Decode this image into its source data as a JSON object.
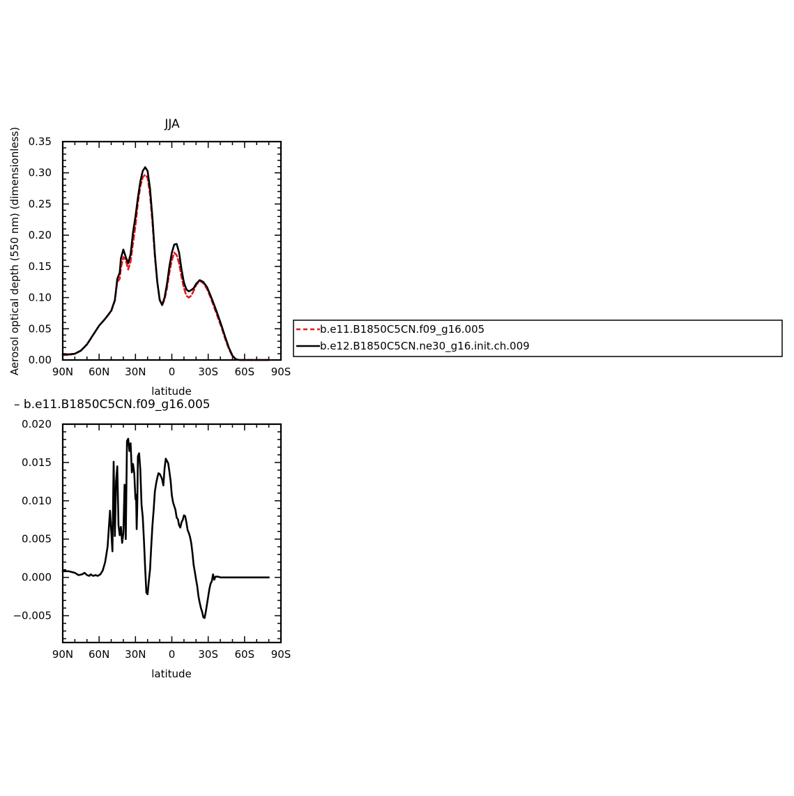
{
  "colors": {
    "series_a": "#e8141c",
    "series_b": "#000000",
    "frame": "#000000",
    "background": "#ffffff"
  },
  "legend": {
    "items": [
      {
        "label": "b.e11.B1850C5CN.f09_g16.005",
        "color": "#e8141c",
        "dash": "dashed"
      },
      {
        "label": "b.e12.B1850C5CN.ne30_g16.init.ch.009",
        "color": "#000000",
        "dash": "solid"
      }
    ]
  },
  "chart_data": [
    {
      "type": "line",
      "title": "JJA",
      "xlabel": "latitude",
      "ylabel": "Aerosol optical depth (550 nm) (dimensionless)",
      "xlim": [
        90,
        -90
      ],
      "ylim": [
        0,
        0.35
      ],
      "x_ticks": [
        90,
        60,
        30,
        0,
        -30,
        -60,
        -90
      ],
      "x_tick_labels": [
        "90N",
        "60N",
        "30N",
        "0",
        "30S",
        "60S",
        "90S"
      ],
      "y_ticks": [
        0,
        0.05,
        0.1,
        0.15,
        0.2,
        0.25,
        0.3,
        0.35
      ],
      "y_tick_labels": [
        "0.00",
        "0.05",
        "0.10",
        "0.15",
        "0.20",
        "0.25",
        "0.30",
        "0.35"
      ],
      "legend_position": "right",
      "series": [
        {
          "name": "b.e11.B1850C5CN.f09_g16.005",
          "color": "#e8141c",
          "dash": "dashed",
          "x": [
            90,
            85,
            80,
            75,
            70,
            65,
            60,
            55,
            50,
            47,
            45,
            43,
            42,
            40,
            38,
            36,
            34,
            32,
            30,
            28,
            26,
            24,
            22,
            20,
            18,
            16,
            14,
            12,
            10,
            8,
            6,
            4,
            2,
            0,
            -2,
            -4,
            -6,
            -8,
            -10,
            -12,
            -14,
            -16,
            -18,
            -20,
            -23,
            -26,
            -29,
            -32,
            -35,
            -38,
            -41,
            -44,
            -47,
            -50,
            -53,
            -56,
            -60,
            -63,
            -66,
            -70,
            -75,
            -80
          ],
          "y": [
            0.008,
            0.008,
            0.01,
            0.015,
            0.025,
            0.04,
            0.055,
            0.066,
            0.078,
            0.095,
            0.125,
            0.13,
            0.148,
            0.165,
            0.16,
            0.145,
            0.158,
            0.188,
            0.215,
            0.252,
            0.278,
            0.293,
            0.297,
            0.292,
            0.265,
            0.22,
            0.165,
            0.125,
            0.097,
            0.088,
            0.097,
            0.115,
            0.14,
            0.16,
            0.172,
            0.168,
            0.155,
            0.133,
            0.115,
            0.103,
            0.1,
            0.103,
            0.111,
            0.12,
            0.127,
            0.123,
            0.114,
            0.1,
            0.084,
            0.068,
            0.052,
            0.034,
            0.018,
            0.006,
            0.001,
            0,
            0,
            0,
            0,
            0,
            0,
            0
          ]
        },
        {
          "name": "b.e12.B1850C5CN.ne30_g16.init.ch.009",
          "color": "#000000",
          "dash": "solid",
          "x": [
            90,
            85,
            80,
            75,
            70,
            65,
            60,
            55,
            50,
            47,
            45,
            43,
            42,
            40,
            38,
            36,
            34,
            32,
            30,
            28,
            26,
            24,
            22,
            20,
            18,
            16,
            14,
            12,
            10,
            8,
            6,
            4,
            2,
            0,
            -2,
            -4,
            -6,
            -8,
            -10,
            -12,
            -14,
            -16,
            -18,
            -20,
            -23,
            -26,
            -29,
            -32,
            -35,
            -38,
            -41,
            -44,
            -47,
            -50,
            -53,
            -56,
            -60,
            -63,
            -66,
            -70,
            -75,
            -80
          ],
          "y": [
            0.009,
            0.009,
            0.01,
            0.015,
            0.025,
            0.04,
            0.055,
            0.066,
            0.079,
            0.096,
            0.13,
            0.14,
            0.163,
            0.177,
            0.165,
            0.155,
            0.17,
            0.205,
            0.23,
            0.26,
            0.286,
            0.303,
            0.309,
            0.303,
            0.275,
            0.228,
            0.17,
            0.125,
            0.096,
            0.088,
            0.1,
            0.122,
            0.15,
            0.172,
            0.185,
            0.186,
            0.172,
            0.145,
            0.124,
            0.113,
            0.11,
            0.112,
            0.115,
            0.122,
            0.128,
            0.125,
            0.117,
            0.103,
            0.088,
            0.072,
            0.055,
            0.037,
            0.02,
            0.007,
            0.001,
            0,
            0,
            0,
            0,
            0,
            0,
            0
          ]
        }
      ]
    },
    {
      "type": "line",
      "title": "– b.e11.B1850C5CN.f09_g16.005",
      "xlabel": "latitude",
      "ylabel": "",
      "xlim": [
        90,
        -90
      ],
      "ylim": [
        -0.0085,
        0.02
      ],
      "x_ticks": [
        90,
        60,
        30,
        0,
        -30,
        -60,
        -90
      ],
      "x_tick_labels": [
        "90N",
        "60N",
        "30N",
        "0",
        "30S",
        "60S",
        "90S"
      ],
      "y_ticks": [
        -0.005,
        0,
        0.005,
        0.01,
        0.015,
        0.02
      ],
      "y_tick_labels": [
        "−0.005",
        "0.000",
        "0.005",
        "0.010",
        "0.015",
        "0.020"
      ],
      "series": [
        {
          "color": "#000000",
          "dash": "solid",
          "x": [
            90,
            85,
            80,
            77,
            74,
            72,
            70,
            68,
            67,
            65,
            63,
            61,
            59,
            57,
            55,
            53,
            51,
            49,
            48,
            47,
            46,
            45,
            44,
            43,
            42,
            41,
            40,
            39,
            38,
            37,
            36,
            35,
            34,
            33,
            32,
            31,
            30,
            29.5,
            29,
            28.5,
            28,
            27,
            26,
            25,
            24,
            23,
            22,
            21,
            20,
            19,
            18,
            17,
            16,
            15,
            14,
            13,
            12,
            11,
            10,
            9,
            8,
            7,
            6,
            5,
            4,
            3,
            2,
            1,
            0,
            -1,
            -2,
            -3,
            -4,
            -5,
            -6,
            -7,
            -8,
            -9,
            -10,
            -11,
            -12,
            -13,
            -14,
            -15,
            -16,
            -17,
            -18,
            -19,
            -20,
            -21,
            -22,
            -23,
            -24,
            -25,
            -26,
            -27,
            -28,
            -29,
            -30,
            -31,
            -32,
            -33,
            -34,
            -35,
            -36,
            -37,
            -38,
            -40,
            -42,
            -44,
            -46,
            -48,
            -50,
            -52,
            -54,
            -55,
            -56,
            -58,
            -60,
            -62,
            -64,
            -65,
            -66,
            -67,
            -68,
            -69,
            -70,
            -72,
            -75,
            -78,
            -80
          ],
          "y": [
            0.0008,
            0.0008,
            0.0006,
            0.0003,
            0.0004,
            0.0006,
            0.0003,
            0.0002,
            0.0004,
            0.0002,
            0.0003,
            0.0002,
            0.0004,
            0.0009,
            0.002,
            0.004,
            0.0087,
            0.0034,
            0.0151,
            0.0054,
            0.0126,
            0.0145,
            0.0068,
            0.0055,
            0.0066,
            0.0045,
            0.0057,
            0.0121,
            0.005,
            0.0178,
            0.0181,
            0.0165,
            0.0175,
            0.0137,
            0.0148,
            0.0136,
            0.0102,
            0.0108,
            0.0063,
            0.0094,
            0.0158,
            0.0162,
            0.0141,
            0.0095,
            0.0079,
            0.0048,
            0.0012,
            -0.002,
            -0.0022,
            -0.0005,
            0.001,
            0.004,
            0.0068,
            0.0088,
            0.0112,
            0.0122,
            0.013,
            0.0136,
            0.0135,
            0.0132,
            0.0128,
            0.012,
            0.0142,
            0.0155,
            0.0152,
            0.0149,
            0.0138,
            0.0126,
            0.0107,
            0.0098,
            0.0093,
            0.0088,
            0.0078,
            0.0076,
            0.0068,
            0.0065,
            0.0072,
            0.0075,
            0.0081,
            0.008,
            0.0072,
            0.0062,
            0.0058,
            0.0053,
            0.0045,
            0.0032,
            0.0016,
            0.0007,
            -0.0003,
            -0.0012,
            -0.0025,
            -0.0033,
            -0.004,
            -0.0045,
            -0.0052,
            -0.0053,
            -0.0045,
            -0.0035,
            -0.0025,
            -0.0015,
            -0.0008,
            -0.0005,
            0.0004,
            -0.0003,
            0.0001,
            0.0001,
            0.0001,
            0.0,
            0.0,
            0.0,
            0.0,
            0.0,
            0.0,
            0.0,
            0.0,
            0.0,
            0.0,
            0.0,
            0.0,
            0.0,
            0.0,
            0.0,
            0.0,
            0.0,
            0.0,
            0.0,
            0.0,
            0.0,
            0.0,
            0.0,
            0.0
          ]
        }
      ]
    }
  ]
}
